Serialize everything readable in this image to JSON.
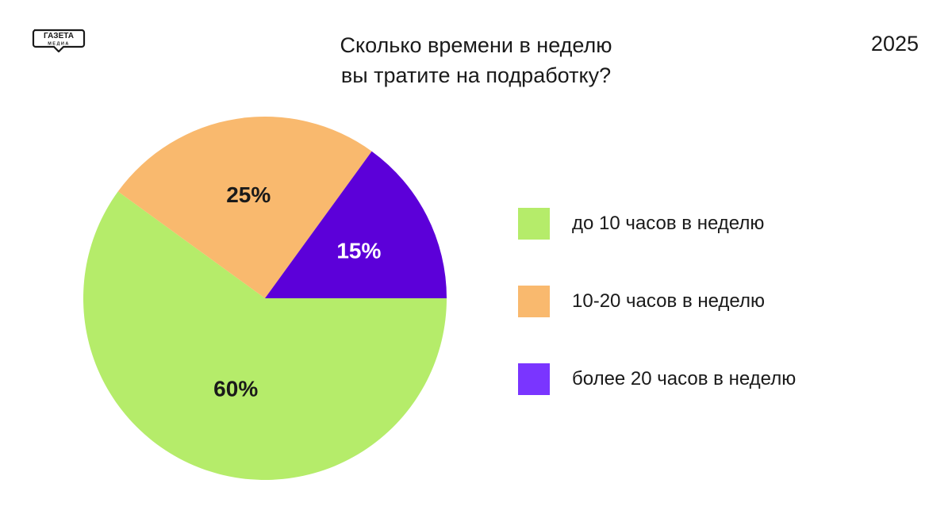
{
  "header": {
    "logo_text_top": "ГАЗЕТА",
    "logo_text_bottom": "МЕДИА",
    "title_line1": "Сколько времени в неделю",
    "title_line2": "вы тратите на подработку?",
    "year": "2025"
  },
  "chart_data": {
    "type": "pie",
    "title": "Сколько времени в неделю вы тратите на подработку?",
    "unit": "%",
    "slices": [
      {
        "label": "до 10 часов в неделю",
        "value": 60,
        "value_label": "60%",
        "color": "#b5ec6a",
        "legend_color": "#b5ec6a"
      },
      {
        "label": "10-20 часов в неделю",
        "value": 25,
        "value_label": "25%",
        "color": "#f9b96e",
        "legend_color": "#f9b96e"
      },
      {
        "label": "более 20 часов в неделю",
        "value": 15,
        "value_label": "15%",
        "color": "#5c00d9",
        "legend_color": "#7a35ff",
        "label_color": "#ffffff"
      }
    ],
    "legend_placement": "right"
  }
}
